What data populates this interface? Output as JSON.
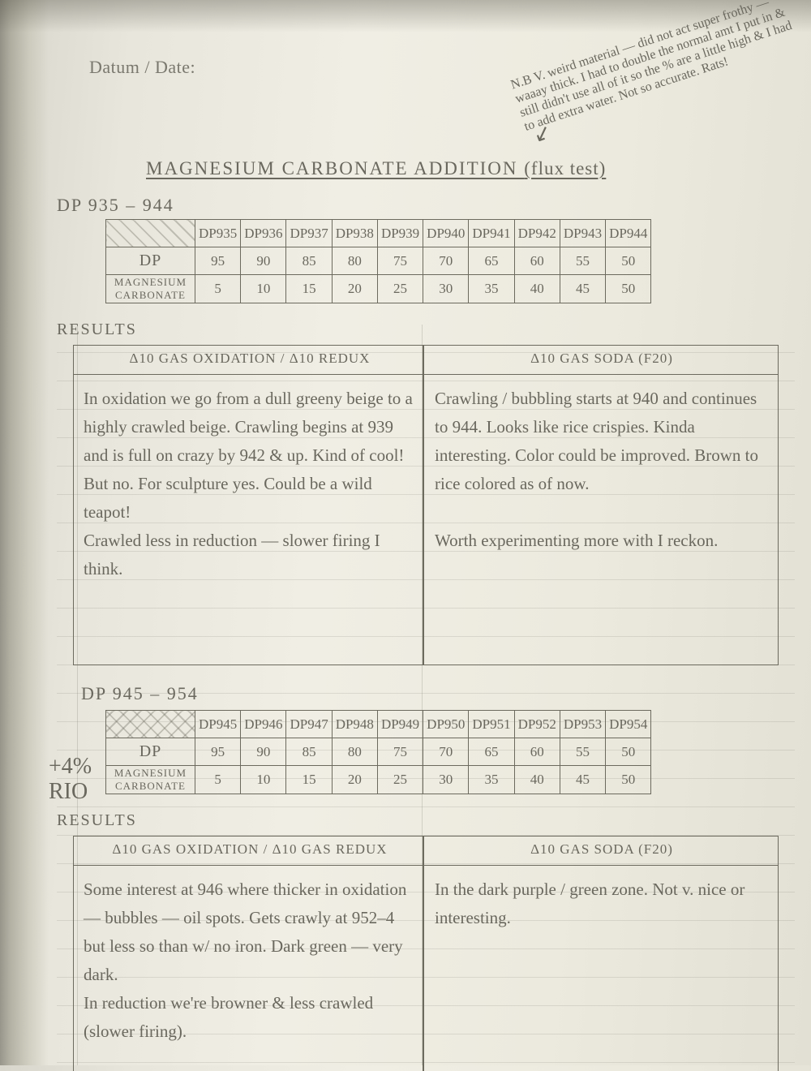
{
  "date_label": "Datum / Date:",
  "title_main": "MAGNESIUM CARBONATE ADDITION",
  "title_paren": "(flux test)",
  "margin_note": "N.B  V. weird material — did not act super frothy — waaay thick. I had to double the normal amt I put in & still didn't use all of it so the % are a little high & I had to add extra water. Not so accurate. Rats!",
  "table1": {
    "range": "DP 935 – 944",
    "ids": [
      "DP935",
      "DP936",
      "DP937",
      "DP938",
      "DP939",
      "DP940",
      "DP941",
      "DP942",
      "DP943",
      "DP944"
    ],
    "rows": [
      {
        "label": "DP",
        "vals": [
          "95",
          "90",
          "85",
          "80",
          "75",
          "70",
          "65",
          "60",
          "55",
          "50"
        ]
      },
      {
        "label": "MAGNESIUM CARBONATE",
        "vals": [
          "5",
          "10",
          "15",
          "20",
          "25",
          "30",
          "35",
          "40",
          "45",
          "50"
        ]
      }
    ]
  },
  "table2": {
    "range": "DP 945 – 954",
    "side": "+4% RIO",
    "ids": [
      "DP945",
      "DP946",
      "DP947",
      "DP948",
      "DP949",
      "DP950",
      "DP951",
      "DP952",
      "DP953",
      "DP954"
    ],
    "rows": [
      {
        "label": "DP",
        "vals": [
          "95",
          "90",
          "85",
          "80",
          "75",
          "70",
          "65",
          "60",
          "55",
          "50"
        ]
      },
      {
        "label": "MAGNESIUM CARBONATE",
        "vals": [
          "5",
          "10",
          "15",
          "20",
          "25",
          "30",
          "35",
          "40",
          "45",
          "50"
        ]
      }
    ]
  },
  "results_label": "RESULTS",
  "box1": {
    "head_left": "Δ10 GAS OXIDATION / Δ10 REDUX",
    "head_right": "Δ10 GAS SODA (F20)",
    "left": "In oxidation we go from a dull greeny beige to a highly crawled beige. Crawling begins at 939 and is full on crazy by 942 & up. Kind of cool! But no. For sculpture yes. Could be a wild teapot!\nCrawled less in reduction — slower firing I think.",
    "right": "Crawling / bubbling starts at 940 and continues to 944. Looks like rice crispies. Kinda interesting. Color could be improved. Brown to rice colored as of now.\n\nWorth experimenting more with I reckon."
  },
  "box2": {
    "head_left": "Δ10 GAS OXIDATION / Δ10 GAS REDUX",
    "head_right": "Δ10 GAS SODA (F20)",
    "left": "Some interest at 946 where thicker in oxidation — bubbles — oil spots. Gets crawly at 952–4 but less so than w/ no iron. Dark green — very dark.\nIn reduction we're browner & less crawled (slower firing).",
    "right": "In the dark purple / green zone. Not v. nice or interesting."
  },
  "side_R": "R",
  "colors": {
    "ink": "#6a685e",
    "rule": "#6c6a5e",
    "paper": "#eceade"
  }
}
